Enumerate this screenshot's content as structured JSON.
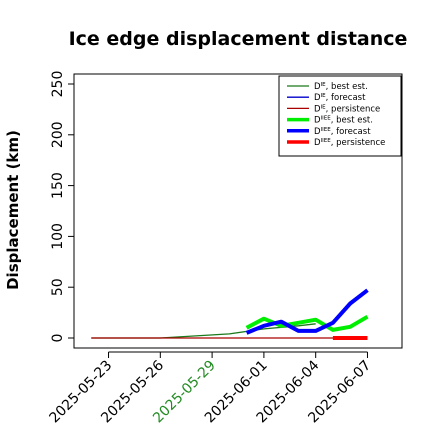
{
  "chart_data": {
    "type": "line",
    "title": "Ice edge displacement distance",
    "ylabel": "Displacement (km)",
    "xlabel": "",
    "ylim": [
      0,
      250
    ],
    "yticks": [
      0,
      50,
      100,
      150,
      200,
      250
    ],
    "xlim": [
      "2025-05-21",
      "2025-06-09"
    ],
    "xticks": [
      "2025-05-23",
      "2025-05-26",
      "2025-05-29",
      "2025-06-01",
      "2025-06-04",
      "2025-06-07"
    ],
    "xtick_colors": [
      "#000000",
      "#000000",
      "#228B22",
      "#000000",
      "#000000",
      "#000000"
    ],
    "grid": false,
    "legend_position": "top-right",
    "series": [
      {
        "name": "D^IE, best est.",
        "legend_base": "D",
        "legend_sup": "IE",
        "legend_rest": ", best est.",
        "color": "#1b7a1b",
        "width": 1.3,
        "x": [
          "2025-05-22",
          "2025-05-26",
          "2025-05-30",
          "2025-06-01",
          "2025-06-03",
          "2025-06-04"
        ],
        "values": [
          0,
          0,
          4,
          9,
          12,
          14
        ]
      },
      {
        "name": "D^IE, forecast",
        "legend_base": "D",
        "legend_sup": "IE",
        "legend_rest": ", forecast",
        "color": "#0000cc",
        "width": 1.3,
        "x": [],
        "values": []
      },
      {
        "name": "D^IE, persistence",
        "legend_base": "D",
        "legend_sup": "IE",
        "legend_rest": ", persistence",
        "color": "#aa0000",
        "width": 1.3,
        "x": [
          "2025-05-22",
          "2025-06-07"
        ],
        "values": [
          0,
          0
        ]
      },
      {
        "name": "D^IIEE, best est.",
        "legend_base": "D",
        "legend_sup": "IIEE",
        "legend_rest": ", best est.",
        "color": "#00ee00",
        "width": 4,
        "x": [
          "2025-05-31",
          "2025-06-01",
          "2025-06-02",
          "2025-06-03",
          "2025-06-04",
          "2025-06-05",
          "2025-06-06",
          "2025-06-07"
        ],
        "values": [
          10,
          19,
          12,
          15,
          18,
          8,
          11,
          21
        ]
      },
      {
        "name": "D^IIEE, forecast",
        "legend_base": "D",
        "legend_sup": "IIEE",
        "legend_rest": ", forecast",
        "color": "#0000ff",
        "width": 4,
        "x": [
          "2025-05-31",
          "2025-06-01",
          "2025-06-02",
          "2025-06-03",
          "2025-06-04",
          "2025-06-05",
          "2025-06-06",
          "2025-06-07"
        ],
        "values": [
          5,
          12,
          16,
          7,
          7,
          15,
          34,
          47
        ]
      },
      {
        "name": "D^IIEE, persistence",
        "legend_base": "D",
        "legend_sup": "IIEE",
        "legend_rest": ", persistence",
        "color": "#ff0000",
        "width": 4,
        "x": [
          "2025-06-05",
          "2025-06-07"
        ],
        "values": [
          0,
          0
        ]
      }
    ]
  }
}
